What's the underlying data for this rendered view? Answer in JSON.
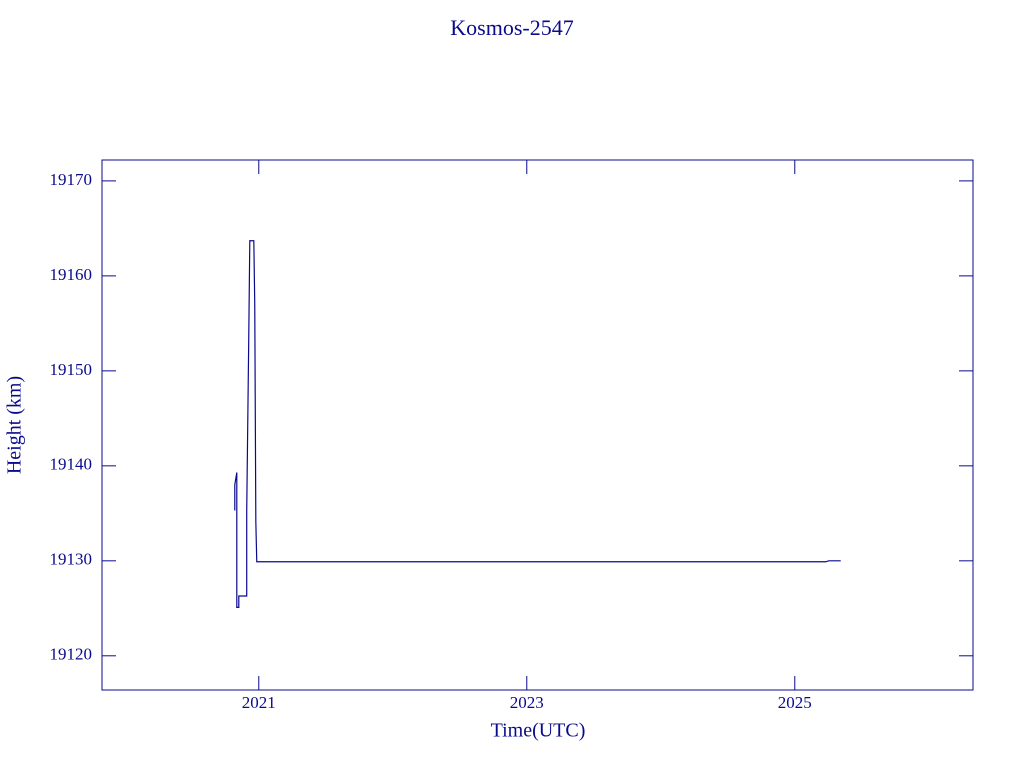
{
  "chart_data": {
    "type": "line",
    "title": "Kosmos-2547",
    "x_label": "Time(UTC)",
    "y_label": "Height (km)",
    "color": "#0a0a8c",
    "x": [
      2020.821,
      2020.821,
      2020.836,
      2020.836,
      2020.851,
      2020.851,
      2020.91,
      2020.91,
      2020.925,
      2020.933,
      2020.963,
      2020.97,
      2020.978,
      2020.985,
      2025.231,
      2025.254,
      2025.343
    ],
    "values": [
      19135.3,
      19138.0,
      19139.3,
      19125.1,
      19125.1,
      19126.3,
      19126.3,
      19135.2,
      19153.3,
      19163.7,
      19163.7,
      19157.0,
      19134.1,
      19129.9,
      19129.9,
      19130.0,
      19130.0
    ],
    "xlim": [
      2019.83,
      2026.33
    ],
    "xticks": [
      2021,
      2023,
      2025
    ],
    "ylim": [
      19116.4,
      19172.2
    ],
    "yticks": [
      19120,
      19130,
      19140,
      19150,
      19160,
      19170
    ]
  }
}
